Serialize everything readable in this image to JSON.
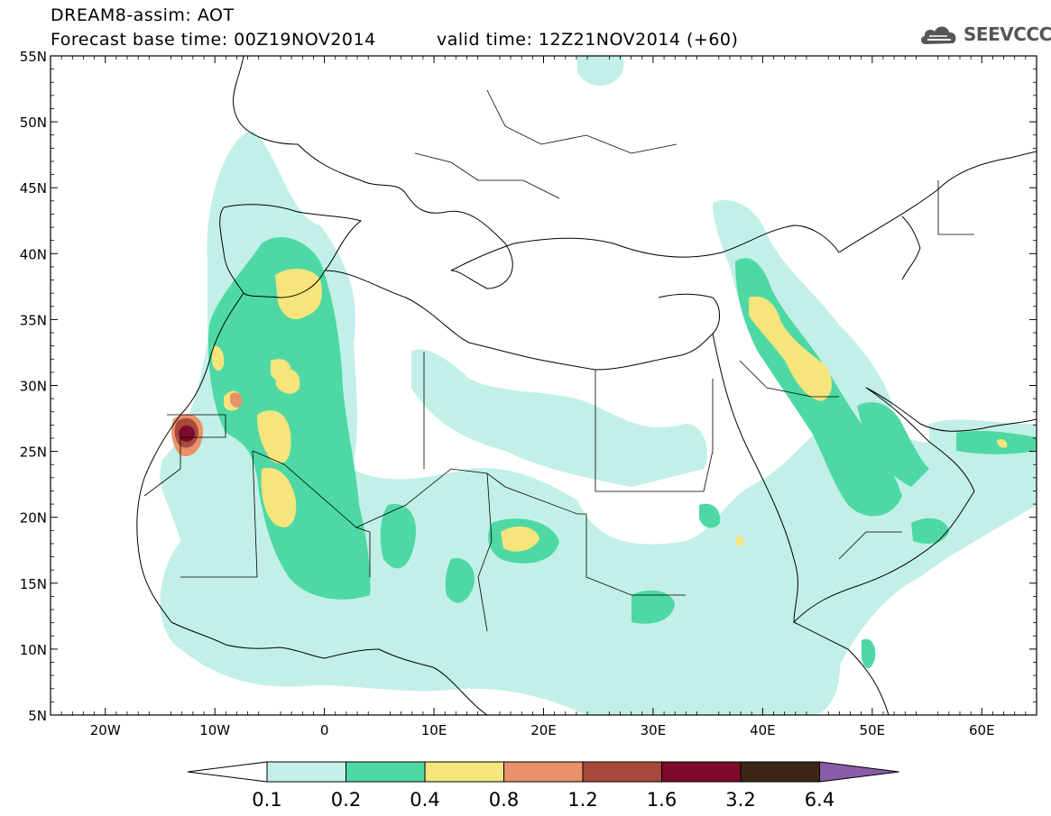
{
  "header": {
    "title": "DREAM8-assim: AOT",
    "base_time_label": "Forecast base time: 00Z19NOV2014",
    "valid_time_label": "valid time: 12Z21NOV2014 (+60)"
  },
  "logo": {
    "text": "SEEVCCC",
    "icon": "cloud-logo-icon"
  },
  "map": {
    "lat_labels": [
      "55N",
      "50N",
      "45N",
      "40N",
      "35N",
      "30N",
      "25N",
      "20N",
      "15N",
      "10N",
      "5N"
    ],
    "lon_labels": [
      "20W",
      "10W",
      "0",
      "10E",
      "20E",
      "30E",
      "40E",
      "50E",
      "60E"
    ],
    "extent": {
      "lon": [
        -25,
        65
      ],
      "lat": [
        5,
        55
      ]
    }
  },
  "colorbar": {
    "labels": [
      "0.1",
      "0.2",
      "0.4",
      "0.8",
      "1.2",
      "1.6",
      "3.2",
      "6.4"
    ],
    "colors": [
      "#ffffff",
      "#c2f0e8",
      "#4ed8a4",
      "#f5e57c",
      "#e8916a",
      "#a74a3c",
      "#7d0a2c",
      "#3c2717",
      "#8a5ca8"
    ]
  }
}
